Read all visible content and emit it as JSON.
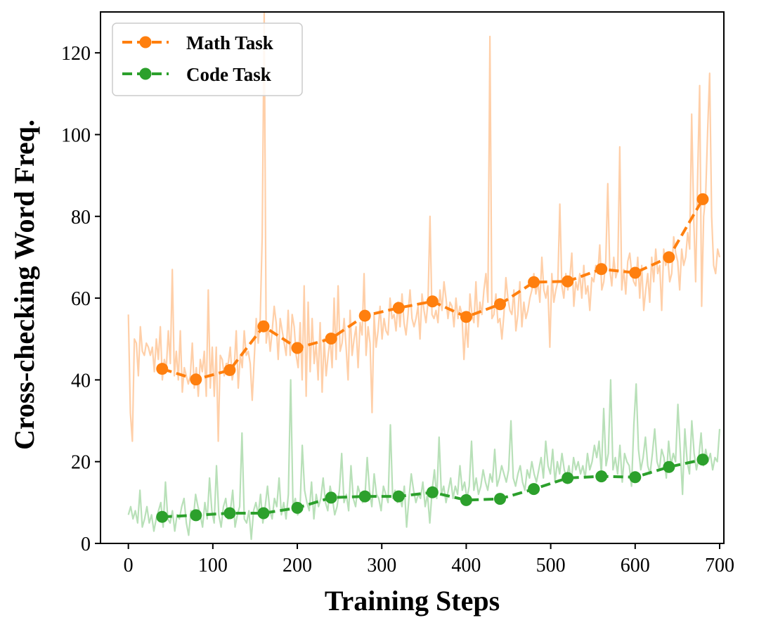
{
  "chart_data": {
    "type": "line",
    "xlabel": "Training Steps",
    "ylabel": "Cross-checking Word Freq.",
    "xlim": [
      -33,
      705
    ],
    "ylim": [
      0,
      130
    ],
    "xticks": [
      0,
      100,
      200,
      300,
      400,
      500,
      600,
      700
    ],
    "yticks": [
      0,
      20,
      40,
      60,
      80,
      100,
      120
    ],
    "grid": false,
    "legend_position": "top-left",
    "series": [
      {
        "name": "Math Task",
        "color": "#ff7f0e",
        "raw_color": "#ffcfa8",
        "marker": "circle",
        "linestyle": "dashed",
        "x": [
          40,
          80,
          120,
          160,
          200,
          240,
          280,
          320,
          360,
          400,
          440,
          480,
          520,
          560,
          600,
          640,
          680
        ],
        "values": [
          42.7,
          40.1,
          42.4,
          53.1,
          47.8,
          50.1,
          55.7,
          57.6,
          59.2,
          55.4,
          58.5,
          63.9,
          64.1,
          67.1,
          66.2,
          70.0,
          84.2
        ],
        "raw_samples": {
          "x_start": 0,
          "x_end": 700,
          "values": [
            56,
            32,
            25,
            50,
            49,
            41,
            53,
            47,
            46,
            49,
            48,
            46,
            48,
            42,
            50,
            45,
            53,
            40,
            45,
            43,
            52,
            44,
            67,
            41,
            47,
            40,
            52,
            37,
            43,
            41,
            39,
            41,
            49,
            38,
            43,
            36,
            45,
            42,
            47,
            36,
            62,
            38,
            48,
            36,
            48,
            25,
            46,
            45,
            41,
            44,
            44,
            48,
            40,
            43,
            52,
            38,
            46,
            43,
            52,
            46,
            47,
            44,
            35,
            45,
            55,
            49,
            55,
            75,
            130,
            49,
            53,
            47,
            52,
            58,
            54,
            45,
            55,
            52,
            49,
            46,
            57,
            46,
            56,
            53,
            46,
            43,
            54,
            40,
            63,
            36,
            59,
            42,
            55,
            44,
            49,
            40,
            54,
            37,
            50,
            41,
            46,
            50,
            43,
            60,
            45,
            63,
            47,
            49,
            55,
            48,
            40,
            57,
            46,
            50,
            53,
            43,
            54,
            51,
            66,
            46,
            53,
            49,
            32,
            56,
            48,
            52,
            58,
            50,
            55,
            52,
            51,
            60,
            55,
            56,
            52,
            59,
            53,
            61,
            54,
            51,
            56,
            62,
            55,
            53,
            55,
            58,
            50,
            61,
            57,
            54,
            59,
            80,
            56,
            55,
            57,
            54,
            62,
            57,
            64,
            60,
            55,
            59,
            58,
            53,
            60,
            55,
            58,
            56,
            45,
            54,
            48,
            61,
            56,
            54,
            64,
            53,
            59,
            56,
            62,
            66,
            59,
            124,
            55,
            56,
            61,
            54,
            55,
            50,
            56,
            65,
            60,
            57,
            56,
            62,
            52,
            56,
            64,
            53,
            59,
            55,
            57,
            60,
            62,
            66,
            61,
            64,
            59,
            70,
            62,
            60,
            63,
            48,
            66,
            59,
            62,
            64,
            83,
            63,
            60,
            66,
            62,
            65,
            71,
            58,
            64,
            62,
            66,
            60,
            68,
            61,
            63,
            57,
            65,
            64,
            68,
            66,
            73,
            62,
            64,
            69,
            88,
            67,
            63,
            70,
            65,
            67,
            97,
            62,
            67,
            61,
            69,
            71,
            66,
            64,
            63,
            70,
            60,
            68,
            57,
            62,
            66,
            59,
            70,
            64,
            72,
            66,
            68,
            57,
            72,
            68,
            70,
            64,
            66,
            75,
            71,
            69,
            62,
            72,
            68,
            70,
            76,
            72,
            105,
            80,
            64,
            90,
            112,
            58,
            80,
            85,
            101,
            115,
            80,
            68,
            66,
            72,
            70
          ]
        }
      },
      {
        "name": "Code Task",
        "color": "#2ca02c",
        "raw_color": "#b8e0b8",
        "marker": "circle",
        "linestyle": "dashed",
        "x": [
          40,
          80,
          120,
          160,
          200,
          240,
          280,
          320,
          360,
          400,
          440,
          480,
          520,
          560,
          600,
          640,
          680
        ],
        "values": [
          6.5,
          6.9,
          7.4,
          7.4,
          8.7,
          11.2,
          11.5,
          11.5,
          12.5,
          10.6,
          10.9,
          13.3,
          16.0,
          16.4,
          16.2,
          18.7,
          20.5
        ],
        "raw_samples": {
          "x_start": 0,
          "x_end": 700,
          "values": [
            7,
            9,
            6,
            8,
            5,
            13,
            4,
            6,
            9,
            5,
            7,
            3,
            6,
            8,
            10,
            4,
            15,
            6,
            5,
            8,
            3,
            7,
            6,
            9,
            11,
            5,
            2,
            8,
            6,
            12,
            9,
            7,
            4,
            10,
            6,
            16,
            8,
            5,
            19,
            7,
            4,
            9,
            11,
            6,
            8,
            13,
            4,
            7,
            9,
            27,
            6,
            5,
            8,
            1,
            8,
            10,
            7,
            12,
            5,
            9,
            14,
            8,
            6,
            11,
            9,
            16,
            7,
            10,
            6,
            12,
            40,
            9,
            11,
            7,
            8,
            24,
            13,
            10,
            8,
            15,
            6,
            12,
            9,
            11,
            16,
            10,
            8,
            14,
            11,
            7,
            9,
            13,
            22,
            10,
            12,
            8,
            19,
            11,
            9,
            14,
            12,
            10,
            11,
            21,
            13,
            9,
            17,
            12,
            11,
            8,
            14,
            12,
            10,
            29,
            11,
            13,
            10,
            12,
            9,
            14,
            4,
            11,
            17,
            13,
            10,
            12,
            11,
            15,
            9,
            12,
            5,
            13,
            18,
            11,
            26,
            12,
            14,
            10,
            13,
            16,
            11,
            14,
            12,
            19,
            13,
            15,
            11,
            14,
            25,
            13,
            16,
            12,
            14,
            18,
            15,
            13,
            17,
            15,
            23,
            14,
            16,
            19,
            17,
            15,
            18,
            30,
            16,
            14,
            17,
            19,
            15,
            13,
            18,
            16,
            20,
            17,
            15,
            18,
            21,
            16,
            25,
            19,
            17,
            23,
            15,
            20,
            17,
            22,
            18,
            16,
            19,
            15,
            21,
            18,
            20,
            17,
            19,
            16,
            22,
            18,
            20,
            24,
            21,
            25,
            17,
            33,
            19,
            22,
            40,
            18,
            21,
            17,
            24,
            15,
            22,
            20,
            19,
            14,
            29,
            39,
            23,
            18,
            21,
            26,
            19,
            17,
            22,
            28,
            20,
            18,
            23,
            21,
            16,
            25,
            19,
            22,
            20,
            34,
            23,
            12,
            28,
            20,
            17,
            30,
            22,
            18,
            21,
            27,
            19,
            23,
            20,
            22,
            18,
            21,
            20,
            28
          ]
        }
      }
    ]
  }
}
